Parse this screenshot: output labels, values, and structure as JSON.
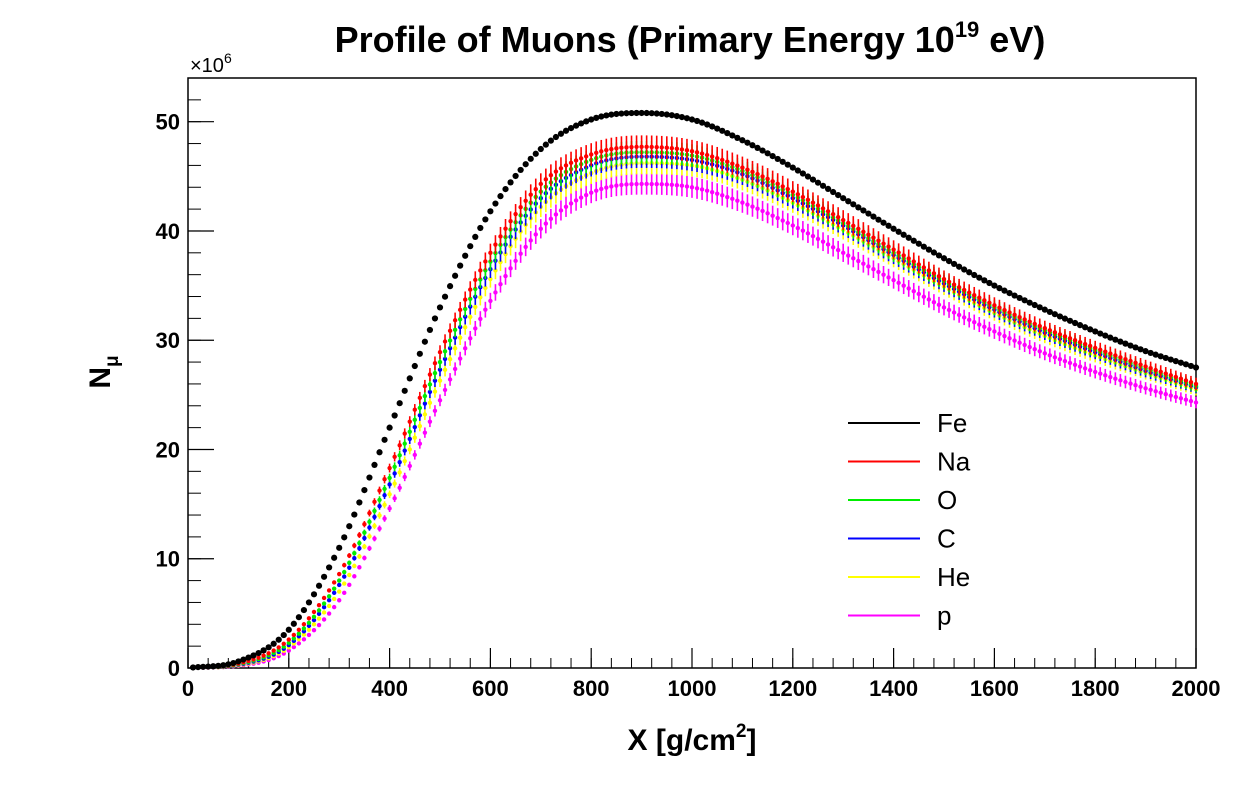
{
  "chart_data": {
    "type": "scatter",
    "title": {
      "main": "Profile of Muons (Primary Energy 10",
      "sup": "19",
      "tail": " eV)"
    },
    "xlabel": {
      "main": "X [g/cm",
      "sup": "2",
      "tail": "]"
    },
    "ylabel": {
      "main": "N",
      "sub": "μ"
    },
    "y_multiplier": {
      "prefix": "×10",
      "sup": "6"
    },
    "xlim": [
      0,
      2000
    ],
    "ylim": [
      0,
      54
    ],
    "x_ticks": [
      0,
      200,
      400,
      600,
      800,
      1000,
      1200,
      1400,
      1600,
      1800,
      2000
    ],
    "y_ticks": [
      0,
      10,
      20,
      30,
      40,
      50
    ],
    "grid": false,
    "legend_position": "lower-right",
    "series": [
      {
        "name": "Fe",
        "color": "#000000",
        "marker": "dot",
        "x": [
          0,
          100,
          200,
          300,
          400,
          500,
          600,
          700,
          800,
          900,
          1000,
          1100,
          1200,
          1300,
          1400,
          1500,
          1600,
          1700,
          1800,
          1900,
          2000
        ],
        "y": [
          0.0,
          0.6,
          3.5,
          11.0,
          22.0,
          33.0,
          41.8,
          47.5,
          50.2,
          50.8,
          50.2,
          48.3,
          45.8,
          43.0,
          40.2,
          37.5,
          35.0,
          32.8,
          30.8,
          29.0,
          27.5
        ]
      },
      {
        "name": "Na",
        "color": "#ff0000",
        "marker": "error-bar",
        "x": [
          0,
          100,
          200,
          300,
          400,
          500,
          600,
          700,
          800,
          900,
          1000,
          1100,
          1200,
          1300,
          1400,
          1500,
          1600,
          1700,
          1800,
          1900,
          2000
        ],
        "y": [
          0.0,
          0.4,
          2.6,
          8.6,
          18.3,
          28.9,
          38.0,
          44.3,
          47.0,
          47.7,
          47.3,
          45.8,
          43.6,
          41.0,
          38.3,
          35.6,
          33.2,
          31.1,
          29.3,
          27.6,
          26.0
        ]
      },
      {
        "name": "O",
        "color": "#00ee00",
        "marker": "error-bar",
        "x": [
          0,
          100,
          200,
          300,
          400,
          500,
          600,
          700,
          800,
          900,
          1000,
          1100,
          1200,
          1300,
          1400,
          1500,
          1600,
          1700,
          1800,
          1900,
          2000
        ],
        "y": [
          0.0,
          0.35,
          2.3,
          8.0,
          17.4,
          28.0,
          37.2,
          43.6,
          46.5,
          47.2,
          46.9,
          45.5,
          43.3,
          40.7,
          38.0,
          35.4,
          33.0,
          30.9,
          29.1,
          27.4,
          25.8
        ]
      },
      {
        "name": "C",
        "color": "#0000ff",
        "marker": "error-bar",
        "x": [
          0,
          100,
          200,
          300,
          400,
          500,
          600,
          700,
          800,
          900,
          1000,
          1100,
          1200,
          1300,
          1400,
          1500,
          1600,
          1700,
          1800,
          1900,
          2000
        ],
        "y": [
          0.0,
          0.3,
          2.1,
          7.6,
          16.8,
          27.3,
          36.5,
          43.0,
          46.0,
          46.8,
          46.5,
          45.2,
          43.0,
          40.5,
          37.8,
          35.2,
          32.8,
          30.7,
          28.9,
          27.2,
          25.7
        ]
      },
      {
        "name": "He",
        "color": "#ffff00",
        "marker": "error-bar",
        "x": [
          0,
          100,
          200,
          300,
          400,
          500,
          600,
          700,
          800,
          900,
          1000,
          1100,
          1200,
          1300,
          1400,
          1500,
          1600,
          1700,
          1800,
          1900,
          2000
        ],
        "y": [
          0.0,
          0.25,
          1.9,
          7.0,
          15.9,
          26.3,
          35.6,
          42.2,
          45.3,
          46.2,
          46.0,
          44.7,
          42.6,
          40.1,
          37.5,
          34.9,
          32.5,
          30.4,
          28.6,
          27.0,
          25.5
        ]
      },
      {
        "name": "p",
        "color": "#ff00ff",
        "marker": "error-bar",
        "x": [
          0,
          100,
          200,
          300,
          400,
          500,
          600,
          700,
          800,
          900,
          1000,
          1100,
          1200,
          1300,
          1400,
          1500,
          1600,
          1700,
          1800,
          1900,
          2000
        ],
        "y": [
          0.0,
          0.2,
          1.6,
          6.2,
          14.6,
          24.5,
          33.6,
          40.2,
          43.5,
          44.3,
          44.0,
          42.6,
          40.5,
          38.0,
          35.5,
          33.0,
          30.8,
          28.8,
          27.1,
          25.6,
          24.3
        ]
      }
    ]
  }
}
